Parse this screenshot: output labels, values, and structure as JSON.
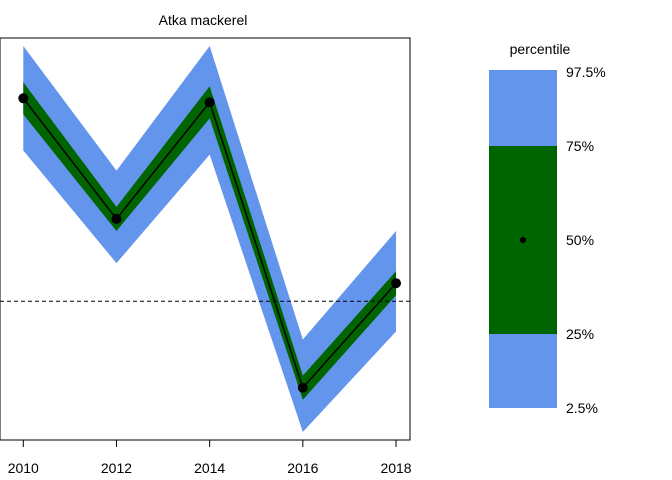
{
  "chart_data": {
    "type": "line",
    "title": "Atka mackerel",
    "xlabel": "",
    "ylabel": "",
    "x": [
      2010,
      2012,
      2014,
      2016,
      2018
    ],
    "xticks": [
      "2010",
      "2012",
      "2014",
      "2016",
      "2018"
    ],
    "xlim": [
      2009.5,
      2018.3
    ],
    "ylim": [
      0,
      1
    ],
    "reference_line": 0.345,
    "series": [
      {
        "median": [
          0.85,
          0.55,
          0.84,
          0.13,
          0.39
        ],
        "p25": [
          0.81,
          0.52,
          0.8,
          0.1,
          0.36
        ],
        "p75": [
          0.89,
          0.58,
          0.88,
          0.16,
          0.42
        ],
        "p2_5": [
          0.72,
          0.44,
          0.71,
          0.02,
          0.27
        ],
        "p97_5": [
          0.98,
          0.67,
          0.98,
          0.25,
          0.52
        ]
      }
    ],
    "colors": {
      "inner": "#006400",
      "outer": "#6495ED",
      "line": "#000000"
    },
    "grid": false,
    "legend": {
      "title": "percentile",
      "labels": {
        "p97_5": "97.5%",
        "p75": "75%",
        "p50": "50%",
        "p25": "25%",
        "p2_5": "2.5%"
      },
      "placement": "right"
    }
  }
}
